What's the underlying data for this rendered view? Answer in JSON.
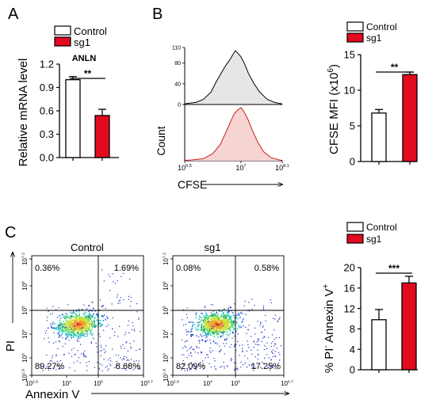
{
  "colors": {
    "control": "#ffffff",
    "sg1": "#e3091e",
    "edge": "#000000",
    "hist_sg1_edge": "#c8201c",
    "hist_sg1_fill": "#f6d4d2",
    "hist_ctrl_fill": "#e6e6e6"
  },
  "legend": {
    "control": "Control",
    "sg1": "sg1"
  },
  "chart_data": [
    {
      "panel": "A",
      "type": "bar",
      "subtitle": "ANLN",
      "ylabel": "Relative mRNA level",
      "ylim": [
        0,
        1.2
      ],
      "yticks": [
        "0.0",
        "0.3",
        "0.6",
        "0.9",
        "1.2"
      ],
      "categories": [
        "Control",
        "sg1"
      ],
      "values": [
        1.0,
        0.54
      ],
      "errors": [
        0.04,
        0.08
      ],
      "significance": "**"
    },
    {
      "panel": "B",
      "type": "area",
      "xlabel": "CFSE",
      "ylabel": "Count",
      "xticks": [
        {
          "base": "10",
          "exp": "5.5"
        },
        {
          "base": "10",
          "exp": "7"
        },
        {
          "base": "10",
          "exp": "8.1"
        }
      ],
      "yticks": [
        "0",
        "40",
        "80",
        "110"
      ],
      "xlim_log10": [
        5.5,
        8.1
      ],
      "series": [
        {
          "label": "control",
          "peak_log10": 6.85,
          "points": [
            [
              5.55,
              2
            ],
            [
              5.8,
              4
            ],
            [
              6.0,
              10
            ],
            [
              6.2,
              24
            ],
            [
              6.35,
              45
            ],
            [
              6.5,
              64
            ],
            [
              6.6,
              76
            ],
            [
              6.7,
              86
            ],
            [
              6.78,
              96
            ],
            [
              6.85,
              104
            ],
            [
              6.93,
              98
            ],
            [
              7.0,
              92
            ],
            [
              7.1,
              78
            ],
            [
              7.2,
              60
            ],
            [
              7.35,
              40
            ],
            [
              7.5,
              24
            ],
            [
              7.7,
              10
            ],
            [
              7.9,
              4
            ],
            [
              8.1,
              1
            ]
          ]
        },
        {
          "label": "sg1",
          "peak_log10": 7.0,
          "points": [
            [
              5.6,
              1
            ],
            [
              6.0,
              4
            ],
            [
              6.25,
              14
            ],
            [
              6.45,
              32
            ],
            [
              6.6,
              56
            ],
            [
              6.72,
              76
            ],
            [
              6.82,
              92
            ],
            [
              6.92,
              100
            ],
            [
              7.0,
              104
            ],
            [
              7.08,
              96
            ],
            [
              7.18,
              82
            ],
            [
              7.3,
              60
            ],
            [
              7.45,
              36
            ],
            [
              7.6,
              18
            ],
            [
              7.8,
              6
            ],
            [
              8.05,
              1
            ]
          ]
        }
      ]
    },
    {
      "panel": "B",
      "type": "bar",
      "ylabel_base": "CFSE MFI (x10",
      "ylabel_exp": "6",
      "ylabel_close": ")",
      "ylim": [
        0,
        15
      ],
      "yticks": [
        "0",
        "5",
        "10",
        "15"
      ],
      "categories": [
        "Control",
        "sg1"
      ],
      "values": [
        6.8,
        12.2
      ],
      "errors": [
        0.5,
        0.35
      ],
      "significance": "**"
    },
    {
      "panel": "C",
      "type": "scatter",
      "plots": [
        {
          "title": "Control",
          "quadrants": {
            "UL": "0.36%",
            "UR": "1.69%",
            "LL": "89.27%",
            "LR": "8.68%"
          }
        },
        {
          "title": "sg1",
          "quadrants": {
            "UL": "0.08%",
            "UR": "0.58%",
            "LL": "82.09%",
            "LR": "17.25%"
          }
        }
      ],
      "xlabel": "Annexin V",
      "ylabel": "PI",
      "xticks": [
        {
          "base": "10",
          "exp": "2.9"
        },
        {
          "base": "10",
          "exp": "4"
        },
        {
          "base": "10",
          "exp": "5"
        },
        {
          "base": "10",
          "exp": "6.7"
        }
      ],
      "yticks": [
        {
          "base": "10",
          "exp": "7.2"
        },
        {
          "base": "10",
          "exp": "6"
        },
        {
          "base": "10",
          "exp": "5"
        },
        {
          "base": "10",
          "exp": "4"
        },
        {
          "base": "10",
          "exp": "3"
        },
        {
          "base": "10",
          "exp": "1.9"
        }
      ]
    },
    {
      "panel": "C",
      "type": "bar",
      "ylabel_parts": [
        "% PI",
        "-",
        " Annexin V",
        "+"
      ],
      "ylim": [
        0,
        20
      ],
      "yticks": [
        "0",
        "4",
        "8",
        "12",
        "16",
        "20"
      ],
      "categories": [
        "Control",
        "sg1"
      ],
      "values": [
        9.8,
        17.0
      ],
      "errors": [
        2.0,
        1.3
      ],
      "significance": "***"
    }
  ],
  "panel_labels": {
    "a": "A",
    "b": "B",
    "c": "C"
  }
}
